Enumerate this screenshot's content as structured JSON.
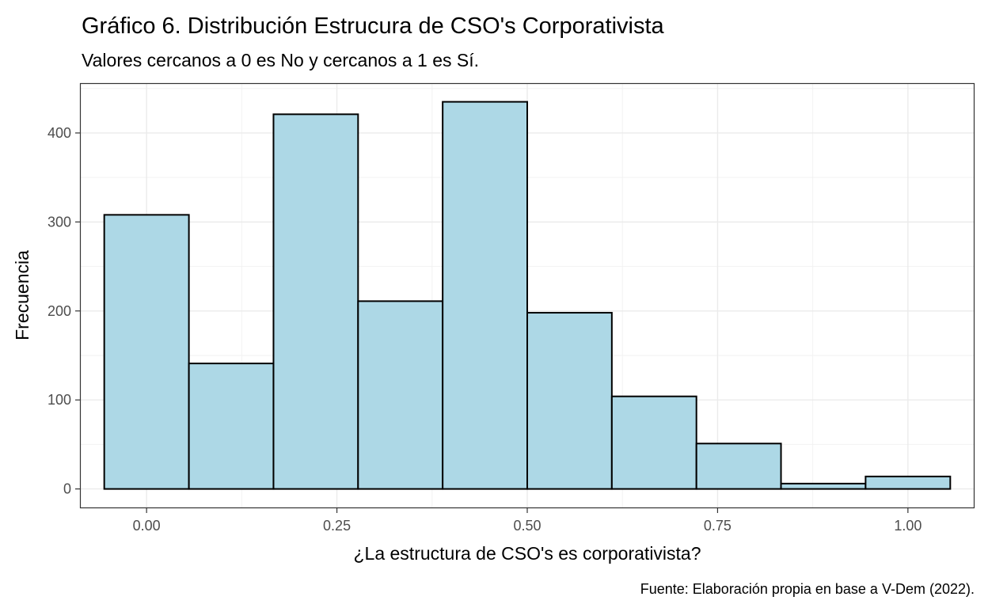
{
  "chart_data": {
    "type": "bar",
    "title": "Gráfico 6. Distribución Estrucura de CSO's Corporativista",
    "subtitle": "Valores cercanos a 0 es No y cercanos a 1 es Sí.",
    "xlabel": "¿La estructura de CSO's es corporativista?",
    "ylabel": "Frecuencia",
    "caption": "Fuente: Elaboración propia en base a V-Dem (2022).",
    "xlim": [
      -0.0875,
      1.0875
    ],
    "ylim": [
      -21.7,
      456
    ],
    "x_ticks": [
      {
        "value": 0,
        "label": "0.00"
      },
      {
        "value": 0.25,
        "label": "0.25"
      },
      {
        "value": 0.5,
        "label": "0.50"
      },
      {
        "value": 0.75,
        "label": "0.75"
      },
      {
        "value": 1,
        "label": "1.00"
      }
    ],
    "y_ticks": [
      {
        "value": 0,
        "label": "0"
      },
      {
        "value": 100,
        "label": "100"
      },
      {
        "value": 200,
        "label": "200"
      },
      {
        "value": 300,
        "label": "300"
      },
      {
        "value": 400,
        "label": "400"
      }
    ],
    "grid": true,
    "bar_fill": "#add8e6",
    "bar_stroke": "#000000",
    "bins": [
      {
        "x0": -0.0556,
        "x1": 0.0556,
        "count": 308
      },
      {
        "x0": 0.0556,
        "x1": 0.1667,
        "count": 141
      },
      {
        "x0": 0.1667,
        "x1": 0.2778,
        "count": 421
      },
      {
        "x0": 0.2778,
        "x1": 0.3889,
        "count": 211
      },
      {
        "x0": 0.3889,
        "x1": 0.5,
        "count": 435
      },
      {
        "x0": 0.5,
        "x1": 0.6111,
        "count": 198
      },
      {
        "x0": 0.6111,
        "x1": 0.7222,
        "count": 104
      },
      {
        "x0": 0.7222,
        "x1": 0.8333,
        "count": 51
      },
      {
        "x0": 0.8333,
        "x1": 0.9444,
        "count": 6
      },
      {
        "x0": 0.9444,
        "x1": 1.0556,
        "count": 14
      }
    ]
  }
}
